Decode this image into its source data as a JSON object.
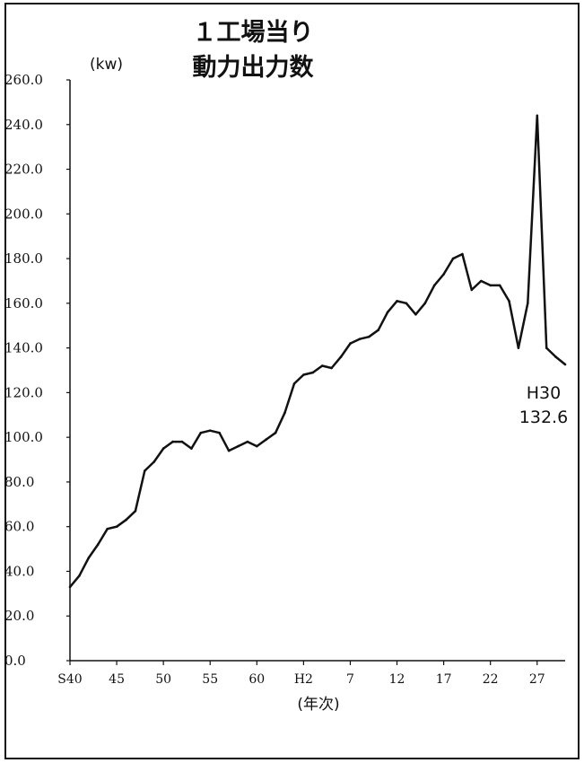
{
  "chart_data": {
    "type": "line",
    "title_line1": "１工場当り",
    "title_line2": "動力出力数",
    "unit": "(kw)",
    "xlabel": "(年次)",
    "ylim": [
      0,
      260
    ],
    "y_ticks": [
      "0.0",
      "20.0",
      "40.0",
      "60.0",
      "80.0",
      "100.0",
      "120.0",
      "140.0",
      "160.0",
      "180.0",
      "200.0",
      "220.0",
      "240.0",
      "260.0"
    ],
    "x_tick_labels": [
      {
        "year": 1965,
        "label": "S40"
      },
      {
        "year": 1970,
        "label": "45"
      },
      {
        "year": 1975,
        "label": "50"
      },
      {
        "year": 1980,
        "label": "55"
      },
      {
        "year": 1985,
        "label": "60"
      },
      {
        "year": 1990,
        "label": "H2"
      },
      {
        "year": 1995,
        "label": "7"
      },
      {
        "year": 2000,
        "label": "12"
      },
      {
        "year": 2005,
        "label": "17"
      },
      {
        "year": 2010,
        "label": "22"
      },
      {
        "year": 2015,
        "label": "27"
      }
    ],
    "xlim": [
      1965,
      2018
    ],
    "grid": false,
    "series": [
      {
        "x": [
          1965,
          1966,
          1967,
          1968,
          1969,
          1970,
          1971,
          1972,
          1973,
          1974,
          1975,
          1976,
          1977,
          1978,
          1979,
          1980,
          1981,
          1982,
          1983,
          1984,
          1985,
          1986,
          1987,
          1988,
          1989,
          1990,
          1991,
          1992,
          1993,
          1994,
          1995,
          1996,
          1997,
          1998,
          1999,
          2000,
          2001,
          2002,
          2003,
          2004,
          2005,
          2006,
          2007,
          2008,
          2009,
          2010,
          2011,
          2012,
          2013,
          2014,
          2015,
          2016,
          2017,
          2018
        ],
        "values": [
          33,
          38,
          46,
          52,
          59,
          60,
          63,
          67,
          85,
          89,
          95,
          98,
          98,
          95,
          102,
          103,
          102,
          94,
          96,
          98,
          96,
          99,
          102,
          111,
          124,
          128,
          129,
          132,
          131,
          136,
          142,
          144,
          145,
          148,
          156,
          161,
          160,
          155,
          160,
          168,
          173,
          180,
          182,
          166,
          170,
          168,
          168,
          161,
          140,
          160,
          244,
          140,
          136,
          132.6
        ],
        "color": "#111111"
      }
    ],
    "annotation": {
      "line1": "H30",
      "line2": "132.6"
    }
  }
}
